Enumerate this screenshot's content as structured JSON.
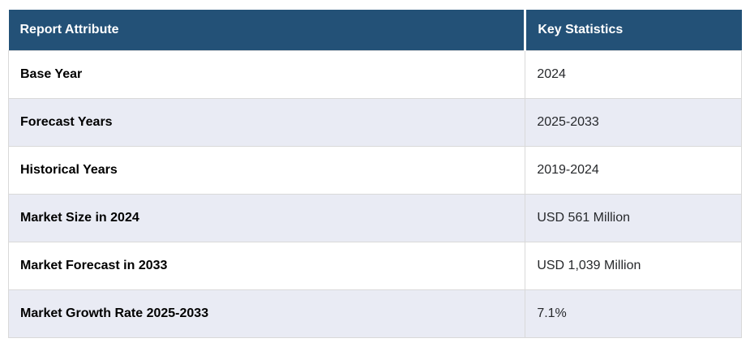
{
  "chart_data": {
    "type": "table",
    "title": "",
    "columns": [
      "Report Attribute",
      "Key Statistics"
    ],
    "rows": [
      [
        "Base Year",
        "2024"
      ],
      [
        "Forecast Years",
        "2025-2033"
      ],
      [
        "Historical Years",
        "2019-2024"
      ],
      [
        "Market Size in 2024",
        "USD 561 Million"
      ],
      [
        "Market Forecast in 2033",
        "USD 1,039 Million"
      ],
      [
        "Market Growth Rate 2025-2033",
        "7.1%"
      ]
    ]
  },
  "table": {
    "header": {
      "attribute": "Report Attribute",
      "statistics": "Key Statistics"
    },
    "rows": [
      {
        "attribute": "Base Year",
        "value": "2024"
      },
      {
        "attribute": "Forecast Years",
        "value": "2025-2033"
      },
      {
        "attribute": "Historical Years",
        "value": "2019-2024"
      },
      {
        "attribute": "Market Size in 2024",
        "value": "USD 561 Million"
      },
      {
        "attribute": "Market Forecast in 2033",
        "value": "USD 1,039 Million"
      },
      {
        "attribute": "Market Growth Rate 2025-2033",
        "value": "7.1%"
      }
    ],
    "colors": {
      "header_bg": "#235177",
      "header_text": "#ffffff",
      "stripe_bg": "#e9ebf4",
      "row_bg": "#ffffff",
      "border": "#d9d9d9",
      "attribute_text": "#000000",
      "value_text": "#26282b"
    }
  }
}
